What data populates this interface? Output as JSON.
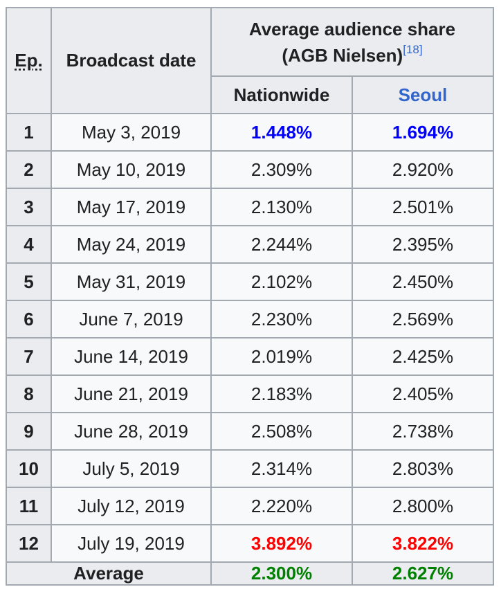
{
  "header": {
    "ep": "Ep.",
    "broadcast_date": "Broadcast date",
    "share_title_line1": "Average audience share",
    "share_title_line2": "(AGB Nielsen)",
    "share_ref": "[18]",
    "nationwide": "Nationwide",
    "seoul": "Seoul"
  },
  "colors": {
    "lowest": "#0000ff",
    "highest": "#ff0000",
    "average": "#008000",
    "link": "#3366cc"
  },
  "rows": [
    {
      "ep": "1",
      "date": "May 3, 2019",
      "nationwide": "1.448%",
      "seoul": "1.694%",
      "nationwide_style": "lowest",
      "seoul_style": "lowest"
    },
    {
      "ep": "2",
      "date": "May 10, 2019",
      "nationwide": "2.309%",
      "seoul": "2.920%"
    },
    {
      "ep": "3",
      "date": "May 17, 2019",
      "nationwide": "2.130%",
      "seoul": "2.501%"
    },
    {
      "ep": "4",
      "date": "May 24, 2019",
      "nationwide": "2.244%",
      "seoul": "2.395%"
    },
    {
      "ep": "5",
      "date": "May 31, 2019",
      "nationwide": "2.102%",
      "seoul": "2.450%"
    },
    {
      "ep": "6",
      "date": "June 7, 2019",
      "nationwide": "2.230%",
      "seoul": "2.569%"
    },
    {
      "ep": "7",
      "date": "June 14, 2019",
      "nationwide": "2.019%",
      "seoul": "2.425%"
    },
    {
      "ep": "8",
      "date": "June 21, 2019",
      "nationwide": "2.183%",
      "seoul": "2.405%"
    },
    {
      "ep": "9",
      "date": "June 28, 2019",
      "nationwide": "2.508%",
      "seoul": "2.738%"
    },
    {
      "ep": "10",
      "date": "July 5, 2019",
      "nationwide": "2.314%",
      "seoul": "2.803%"
    },
    {
      "ep": "11",
      "date": "July 12, 2019",
      "nationwide": "2.220%",
      "seoul": "2.800%"
    },
    {
      "ep": "12",
      "date": "July 19, 2019",
      "nationwide": "3.892%",
      "seoul": "3.822%",
      "nationwide_style": "highest",
      "seoul_style": "highest"
    }
  ],
  "footer": {
    "label": "Average",
    "nationwide": "2.300%",
    "seoul": "2.627%"
  }
}
